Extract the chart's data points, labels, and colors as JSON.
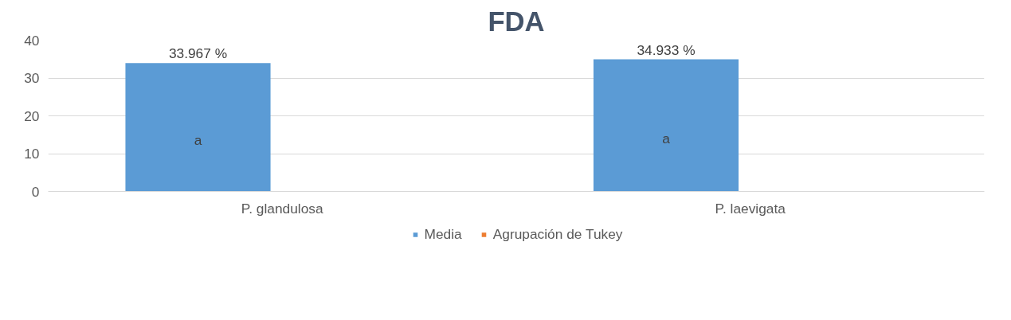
{
  "chart_data": {
    "type": "bar",
    "title": "FDA",
    "categories": [
      "P. glandulosa",
      "P. laevigata"
    ],
    "series": [
      {
        "name": "Media",
        "color": "#5b9bd5",
        "values": [
          33.967,
          34.933
        ],
        "value_labels": [
          "33.967 %",
          "34.933 %"
        ]
      },
      {
        "name": "Agrupación de Tukey",
        "color": "#ed7d31",
        "values": [
          null,
          null
        ]
      }
    ],
    "annotations": [
      "a",
      "a"
    ],
    "ylim": [
      0,
      40
    ],
    "yticks": [
      0,
      10,
      20,
      30,
      40
    ],
    "grid": "y",
    "legend": "bottom"
  }
}
